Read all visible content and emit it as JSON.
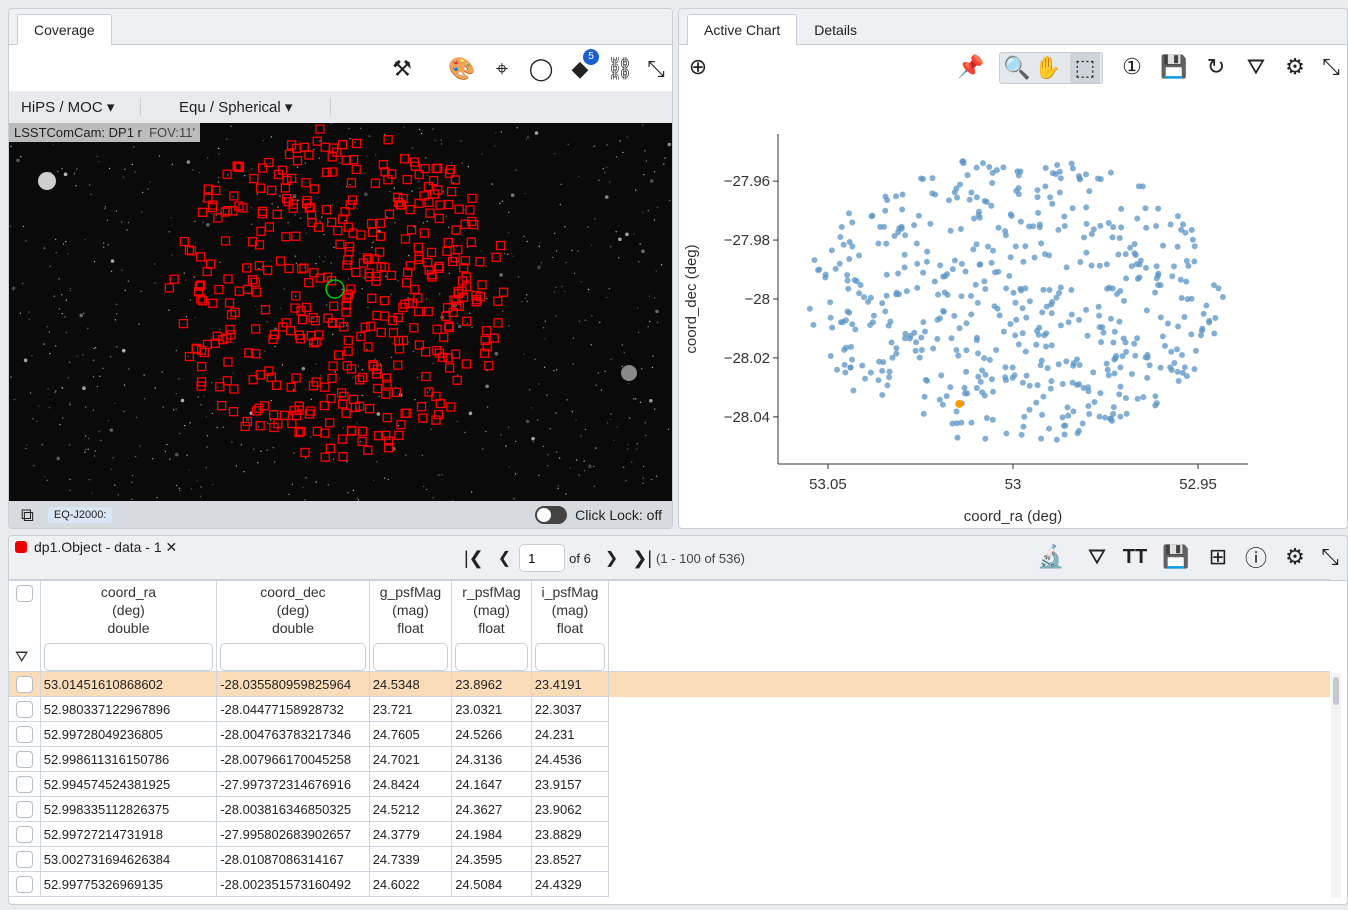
{
  "coverage": {
    "tab": "Coverage",
    "hips_label": "HiPS / MOC",
    "proj_label": "Equ / Spherical",
    "image_title": "LSSTComCam: DP1 r",
    "fov": "FOV:11'",
    "layers_badge": "5",
    "coord_sys": "EQ-J2000:",
    "click_lock": "Click Lock: off",
    "toolbar_icons": [
      "tools-icon",
      "palette-icon",
      "recenter-icon",
      "lasso-icon",
      "layers-icon",
      "unlink-icon",
      "expand-icon"
    ]
  },
  "chart": {
    "tabs": [
      "Active Chart",
      "Details"
    ],
    "toolbar_icons": [
      "add-icon",
      "pin-icon",
      "zoom-icon",
      "pan-icon",
      "select-icon",
      "zoom-1x-icon",
      "save-icon",
      "restore-icon",
      "filter-icon",
      "settings-icon",
      "expand-icon"
    ]
  },
  "chart_data": {
    "type": "scatter",
    "xlabel": "coord_ra (deg)",
    "ylabel": "coord_dec (deg)",
    "xlim": [
      53.0635,
      52.9365
    ],
    "ylim": [
      -28.056,
      -27.944
    ],
    "xticks": [
      "53.05",
      "53",
      "52.95"
    ],
    "xtick_values": [
      53.05,
      53.0,
      52.95
    ],
    "yticks": [
      "−27.96",
      "−27.98",
      "−28",
      "−28.02",
      "−28.04"
    ],
    "ytick_values": [
      -27.96,
      -27.98,
      -28.0,
      -28.02,
      -28.04
    ],
    "point_count": 536,
    "point_color": "#5b94c5",
    "highlight": {
      "x": 53.01451610868602,
      "y": -28.035580959825964,
      "color": "#ff9900"
    },
    "grid": false
  },
  "table": {
    "title": "dp1.Object - data - 1",
    "page": "1",
    "of_pages": "of 6",
    "range": "(1 - 100 of 536)",
    "columns": [
      {
        "name": "coord_ra",
        "unit": "(deg)",
        "type": "double"
      },
      {
        "name": "coord_dec",
        "unit": "(deg)",
        "type": "double"
      },
      {
        "name": "g_psfMag",
        "unit": "(mag)",
        "type": "float"
      },
      {
        "name": "r_psfMag",
        "unit": "(mag)",
        "type": "float"
      },
      {
        "name": "i_psfMag",
        "unit": "(mag)",
        "type": "float"
      }
    ],
    "rows": [
      [
        "53.01451610868602",
        "-28.035580959825964",
        "24.5348",
        "23.8962",
        "23.4191"
      ],
      [
        "52.980337122967896",
        "-28.04477158928732",
        "23.721",
        "23.0321",
        "22.3037"
      ],
      [
        "52.99728049236805",
        "-28.004763783217346",
        "24.7605",
        "24.5266",
        "24.231"
      ],
      [
        "52.998611316150786",
        "-28.007966170045258",
        "24.7021",
        "24.3136",
        "24.4536"
      ],
      [
        "52.994574524381925",
        "-27.997372314676916",
        "24.8424",
        "24.1647",
        "23.9157"
      ],
      [
        "52.998335112826375",
        "-28.003816346850325",
        "24.5212",
        "24.3627",
        "23.9062"
      ],
      [
        "52.99727214731918",
        "-27.995802683902657",
        "24.3779",
        "24.1984",
        "23.8829"
      ],
      [
        "53.002731694626384",
        "-28.01087086314167",
        "24.7339",
        "24.3595",
        "23.8527"
      ],
      [
        "52.99775326969135",
        "-28.002351573160492",
        "24.6022",
        "24.5084",
        "24.4329"
      ]
    ]
  }
}
